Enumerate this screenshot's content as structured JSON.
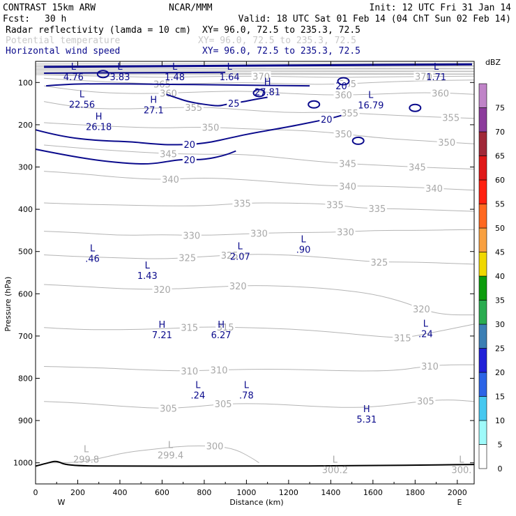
{
  "header": {
    "model": "CONTRAST 15km ARW",
    "org": "NCAR/MMM",
    "init": "Init: 12 UTC Fri 31 Jan 14",
    "fcst_label": "Fcst:",
    "fcst_value": "30 h",
    "valid": "Valid: 18 UTC Sat 01 Feb 14 (04 ChT Sun 02 Feb 14)",
    "fields": [
      {
        "name": "Radar reflectivity (lamda = 10 cm)",
        "xy": "XY=  96.0, 72.5 to 235.3, 72.5",
        "color": "#000000"
      },
      {
        "name": "Potential temperature",
        "xy": "XY=  96.0, 72.5 to 235.3, 72.5",
        "color": "#c8c8c8"
      },
      {
        "name": "Horizontal wind speed",
        "xy": "XY=  96.0, 72.5 to 235.3, 72.5",
        "color": "#0a0a8c"
      }
    ]
  },
  "chart_data": {
    "type": "cross-section",
    "xlabel": "Distance (km)",
    "ylabel": "Pressure (hPa)",
    "xlim": [
      0,
      2080
    ],
    "ylim_pressure": [
      1050,
      50
    ],
    "x_ticks": [
      0,
      200,
      400,
      600,
      800,
      1000,
      1200,
      1400,
      1600,
      1800,
      2000
    ],
    "y_ticks": [
      100,
      200,
      300,
      400,
      500,
      600,
      700,
      800,
      900,
      1000
    ],
    "x_end_labels": {
      "left": "W",
      "right": "E"
    },
    "colorbar": {
      "unit": "dBZ",
      "levels": [
        0,
        5,
        10,
        15,
        20,
        25,
        30,
        35,
        40,
        45,
        50,
        55,
        60,
        65,
        70,
        75
      ],
      "colors": [
        "#ffffff",
        "#9ffafa",
        "#46c8f0",
        "#2c64e6",
        "#2020d8",
        "#3c7fb4",
        "#2aac50",
        "#0c9c0c",
        "#f0d800",
        "#f8a040",
        "#ff6820",
        "#ff2010",
        "#e01818",
        "#a02838",
        "#8c3c9c",
        "#c084c8"
      ]
    },
    "theta_contours": [
      {
        "value": 300,
        "pressure": [
          1000,
          1000,
          990,
          975,
          968,
          960,
          960,
          968,
          990,
          1000
        ],
        "x": [
          60,
          200,
          300,
          430,
          560,
          700,
          850,
          950,
          1030,
          1060
        ],
        "labels_at": [
          850
        ]
      },
      {
        "value": 305,
        "pressure": [
          855,
          858,
          866,
          872,
          868,
          860,
          860,
          866,
          870,
          866,
          856,
          850,
          855
        ],
        "x": [
          40,
          200,
          400,
          600,
          750,
          900,
          1100,
          1300,
          1500,
          1650,
          1800,
          1950,
          2080
        ],
        "labels_at": [
          630,
          890,
          1850
        ]
      },
      {
        "value": 310,
        "pressure": [
          772,
          775,
          780,
          783,
          780,
          778,
          780,
          783,
          782,
          772,
          768,
          768
        ],
        "x": [
          40,
          300,
          500,
          700,
          900,
          1100,
          1300,
          1500,
          1700,
          1850,
          1950,
          2080
        ],
        "labels_at": [
          730,
          870,
          1870
        ]
      },
      {
        "value": 315,
        "pressure": [
          680,
          685,
          685,
          683,
          678,
          680,
          683,
          690,
          700,
          705,
          690,
          672
        ],
        "x": [
          40,
          200,
          400,
          600,
          800,
          1000,
          1200,
          1400,
          1600,
          1750,
          1900,
          2080
        ],
        "labels_at": [
          730,
          900,
          1740
        ]
      },
      {
        "value": 320,
        "pressure": [
          578,
          582,
          588,
          590,
          585,
          580,
          582,
          588,
          600,
          620,
          640,
          650,
          650
        ],
        "x": [
          40,
          200,
          400,
          600,
          800,
          1000,
          1200,
          1400,
          1600,
          1750,
          1850,
          1950,
          2080
        ],
        "labels_at": [
          600,
          960,
          1830
        ]
      },
      {
        "value": 325,
        "pressure": [
          508,
          512,
          515,
          518,
          512,
          506,
          508,
          515,
          525,
          525,
          530
        ],
        "x": [
          40,
          200,
          400,
          600,
          800,
          1000,
          1200,
          1400,
          1600,
          1800,
          2080
        ],
        "labels_at": [
          720,
          920,
          1630
        ]
      },
      {
        "value": 330,
        "pressure": [
          452,
          455,
          462,
          460,
          462,
          458,
          455,
          455,
          450,
          450,
          448
        ],
        "x": [
          40,
          200,
          400,
          600,
          800,
          1000,
          1200,
          1400,
          1600,
          1800,
          2080
        ],
        "labels_at": [
          740,
          1060,
          1470
        ]
      },
      {
        "value": 335,
        "pressure": [
          385,
          388,
          390,
          392,
          392,
          385,
          385,
          388,
          395,
          398,
          400,
          405
        ],
        "x": [
          40,
          200,
          400,
          600,
          800,
          1000,
          1200,
          1400,
          1500,
          1600,
          1800,
          2080
        ],
        "labels_at": [
          980,
          1420,
          1620
        ]
      },
      {
        "value": 340,
        "pressure": [
          310,
          315,
          325,
          330,
          325,
          330,
          338,
          345,
          345,
          348,
          355
        ],
        "x": [
          40,
          200,
          400,
          600,
          800,
          1000,
          1200,
          1400,
          1600,
          1800,
          2080
        ],
        "labels_at": [
          640,
          1480,
          1890
        ]
      },
      {
        "value": 345,
        "pressure": [
          248,
          255,
          262,
          268,
          270,
          270,
          280,
          290,
          295,
          300,
          305
        ],
        "x": [
          40,
          200,
          400,
          600,
          800,
          1000,
          1200,
          1400,
          1600,
          1800,
          2080
        ],
        "labels_at": [
          630,
          1480,
          1810
        ]
      },
      {
        "value": 350,
        "pressure": [
          195,
          200,
          205,
          208,
          205,
          210,
          212,
          218,
          230,
          237,
          245
        ],
        "x": [
          40,
          200,
          400,
          600,
          800,
          1000,
          1200,
          1400,
          1600,
          1800,
          2080
        ],
        "labels_at": [
          830,
          1460,
          1950
        ]
      },
      {
        "value": 355,
        "pressure": [
          145,
          160,
          163,
          160,
          158,
          165,
          172,
          170,
          175,
          180,
          185
        ],
        "x": [
          40,
          200,
          400,
          600,
          800,
          1000,
          1200,
          1400,
          1600,
          1800,
          2080
        ],
        "labels_at": [
          750,
          1490,
          1970
        ]
      },
      {
        "value": 360,
        "pressure": [
          108,
          120,
          126,
          126,
          122,
          120,
          126,
          130,
          128,
          124,
          125,
          128
        ],
        "x": [
          40,
          200,
          400,
          600,
          800,
          1000,
          1200,
          1400,
          1600,
          1800,
          1950,
          2080
        ],
        "labels_at": [
          630,
          1460,
          1920
        ]
      },
      {
        "value": 365,
        "pressure": [
          90,
          95,
          100,
          104,
          102,
          100,
          103,
          105,
          100,
          96,
          94
        ],
        "x": [
          40,
          200,
          400,
          600,
          800,
          1000,
          1200,
          1400,
          1600,
          1800,
          2080
        ],
        "labels_at": [
          600,
          1480
        ]
      },
      {
        "value": 370,
        "pressure": [
          82,
          84,
          86,
          88,
          86,
          85,
          86,
          88,
          87,
          86,
          85
        ],
        "x": [
          40,
          200,
          400,
          600,
          800,
          1000,
          1200,
          1400,
          1600,
          1800,
          2080
        ],
        "labels_at": [
          1070,
          1840
        ]
      }
    ],
    "wind_contours": [
      {
        "value": 20,
        "pressure": [
          212,
          228,
          238,
          240,
          245,
          248,
          245,
          228,
          218,
          205,
          195,
          185,
          178
        ],
        "x": [
          0,
          120,
          300,
          450,
          550,
          650,
          800,
          950,
          1050,
          1200,
          1300,
          1400,
          1450
        ],
        "labels_at": [
          730,
          1380
        ]
      },
      {
        "value": 20,
        "pressure": [
          258,
          270,
          285,
          292,
          293,
          285,
          282,
          283,
          272,
          262
        ],
        "x": [
          0,
          120,
          300,
          450,
          550,
          650,
          700,
          800,
          900,
          950
        ],
        "labels_at": [
          730
        ]
      },
      {
        "value": 25,
        "pressure": [
          128,
          135,
          145,
          152,
          156,
          152,
          148,
          146,
          140,
          135
        ],
        "x": [
          620,
          660,
          720,
          800,
          870,
          900,
          950,
          980,
          1040,
          1100
        ],
        "labels_at": [
          940
        ]
      },
      {
        "value": 20,
        "pressure": [
          108,
          104,
          103,
          104,
          106,
          108
        ],
        "x": [
          50,
          150,
          300,
          600,
          900,
          1300
        ],
        "labels_at": [
          1450
        ]
      }
    ],
    "hl_labels": [
      {
        "type": "L",
        "value": "4.76",
        "x": 180,
        "p": 70
      },
      {
        "type": "L",
        "value": "3.83",
        "x": 400,
        "p": 70
      },
      {
        "type": "L",
        "value": "1.48",
        "x": 660,
        "p": 70
      },
      {
        "type": "L",
        "value": "1.64",
        "x": 920,
        "p": 70
      },
      {
        "type": "L",
        "value": "1.71",
        "x": 1900,
        "p": 70
      },
      {
        "type": "L",
        "value": "22.56",
        "x": 220,
        "p": 135
      },
      {
        "type": "H",
        "value": "27.1",
        "x": 560,
        "p": 148
      },
      {
        "type": "H",
        "value": "27.81",
        "x": 1100,
        "p": 105
      },
      {
        "type": "L",
        "value": "16.79",
        "x": 1590,
        "p": 137
      },
      {
        "type": "H",
        "value": "26.18",
        "x": 300,
        "p": 188
      },
      {
        "type": "L",
        "value": ".46",
        "x": 270,
        "p": 500
      },
      {
        "type": "L",
        "value": "1.43",
        "x": 530,
        "p": 540
      },
      {
        "type": "L",
        "value": "2.07",
        "x": 970,
        "p": 495
      },
      {
        "type": "L",
        "value": ".90",
        "x": 1270,
        "p": 478
      },
      {
        "type": "H",
        "value": "7.21",
        "x": 600,
        "p": 680
      },
      {
        "type": "H",
        "value": "6.27",
        "x": 880,
        "p": 680
      },
      {
        "type": "L",
        "value": ".24",
        "x": 1850,
        "p": 678
      },
      {
        "type": "L",
        "value": ".24",
        "x": 770,
        "p": 823
      },
      {
        "type": "L",
        "value": ".78",
        "x": 1000,
        "p": 823
      },
      {
        "type": "H",
        "value": "5.31",
        "x": 1570,
        "p": 880
      },
      {
        "type": "L",
        "value": "299.8",
        "x": 240,
        "p": 975,
        "gray": true
      },
      {
        "type": "L",
        "value": "299.4",
        "x": 640,
        "p": 965,
        "gray": true
      },
      {
        "type": "L",
        "value": "300.2",
        "x": 1420,
        "p": 1000,
        "gray": true
      },
      {
        "type": "L",
        "value": "300.",
        "x": 2020,
        "p": 1000,
        "gray": true
      }
    ],
    "terrain": {
      "pressure": [
        1008,
        1000,
        995,
        1007,
        1008,
        1008,
        1007,
        1005,
        1004
      ],
      "x": [
        0,
        60,
        100,
        150,
        400,
        1000,
        1600,
        1900,
        2080
      ]
    }
  }
}
